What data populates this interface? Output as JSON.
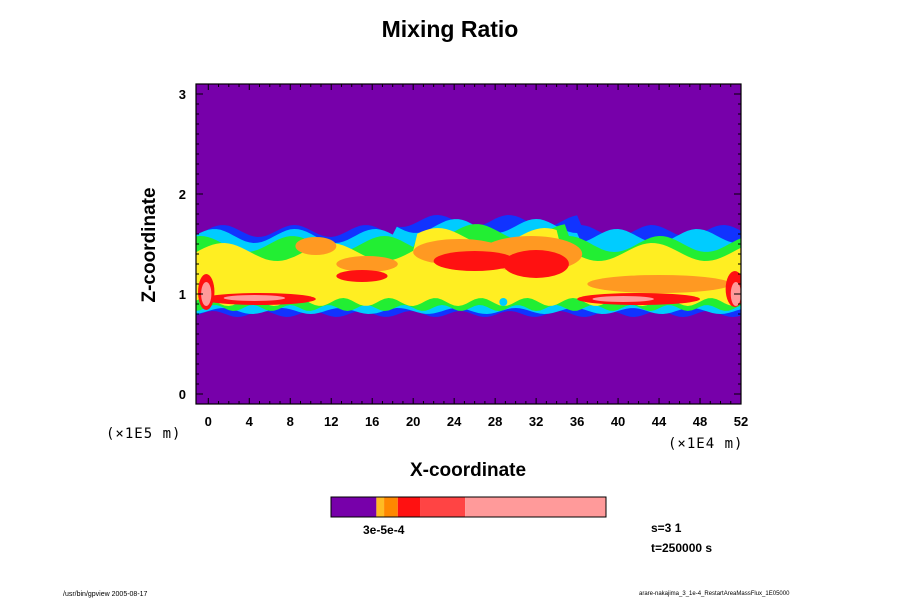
{
  "chart_data": {
    "type": "heatmap",
    "title": "Mixing Ratio",
    "xlabel": "X-coordinate",
    "ylabel": "Z-coordinate",
    "x_unit": "(×1E4 m)",
    "y_unit": "(×1E5 m)",
    "xlim": [
      -1.2,
      52
    ],
    "ylim": [
      -0.1,
      3.1
    ],
    "x_ticks": [
      "0",
      "4",
      "8",
      "12",
      "16",
      "20",
      "24",
      "28",
      "32",
      "36",
      "40",
      "44",
      "48",
      "52"
    ],
    "y_ticks": [
      "0",
      "1",
      "2",
      "3"
    ],
    "band": {
      "description_levels": "mixing ratio field concentrated in a horizontal layer",
      "z_bottom": 0.8,
      "z_top": 1.75,
      "x_range": [
        -1.2,
        52
      ]
    },
    "colorbar": {
      "label": "3e-5e-4",
      "colors": [
        "#7700aa",
        "#ffbb22",
        "#ff8800",
        "#ff1111",
        "#ff4444",
        "#ff9a9a"
      ],
      "fractions": [
        0.165,
        0.028,
        0.05,
        0.082,
        0.163,
        0.512
      ]
    },
    "field_colors": {
      "background": "#7700aa",
      "blue": "#1133ff",
      "cyan": "#00ccff",
      "green": "#22ee33",
      "yellow": "#ffee22",
      "orange": "#ff9922",
      "red": "#ff1111",
      "pink": "#ff9a9a"
    }
  },
  "info": {
    "s": "s=3 1",
    "t": "t=250000 s"
  },
  "footer": {
    "left": "/usr/bin/gpview 2005-08-17",
    "right": "arare-nakajima_3_1e-4_RestartAreaMassFlux_1E05000"
  }
}
